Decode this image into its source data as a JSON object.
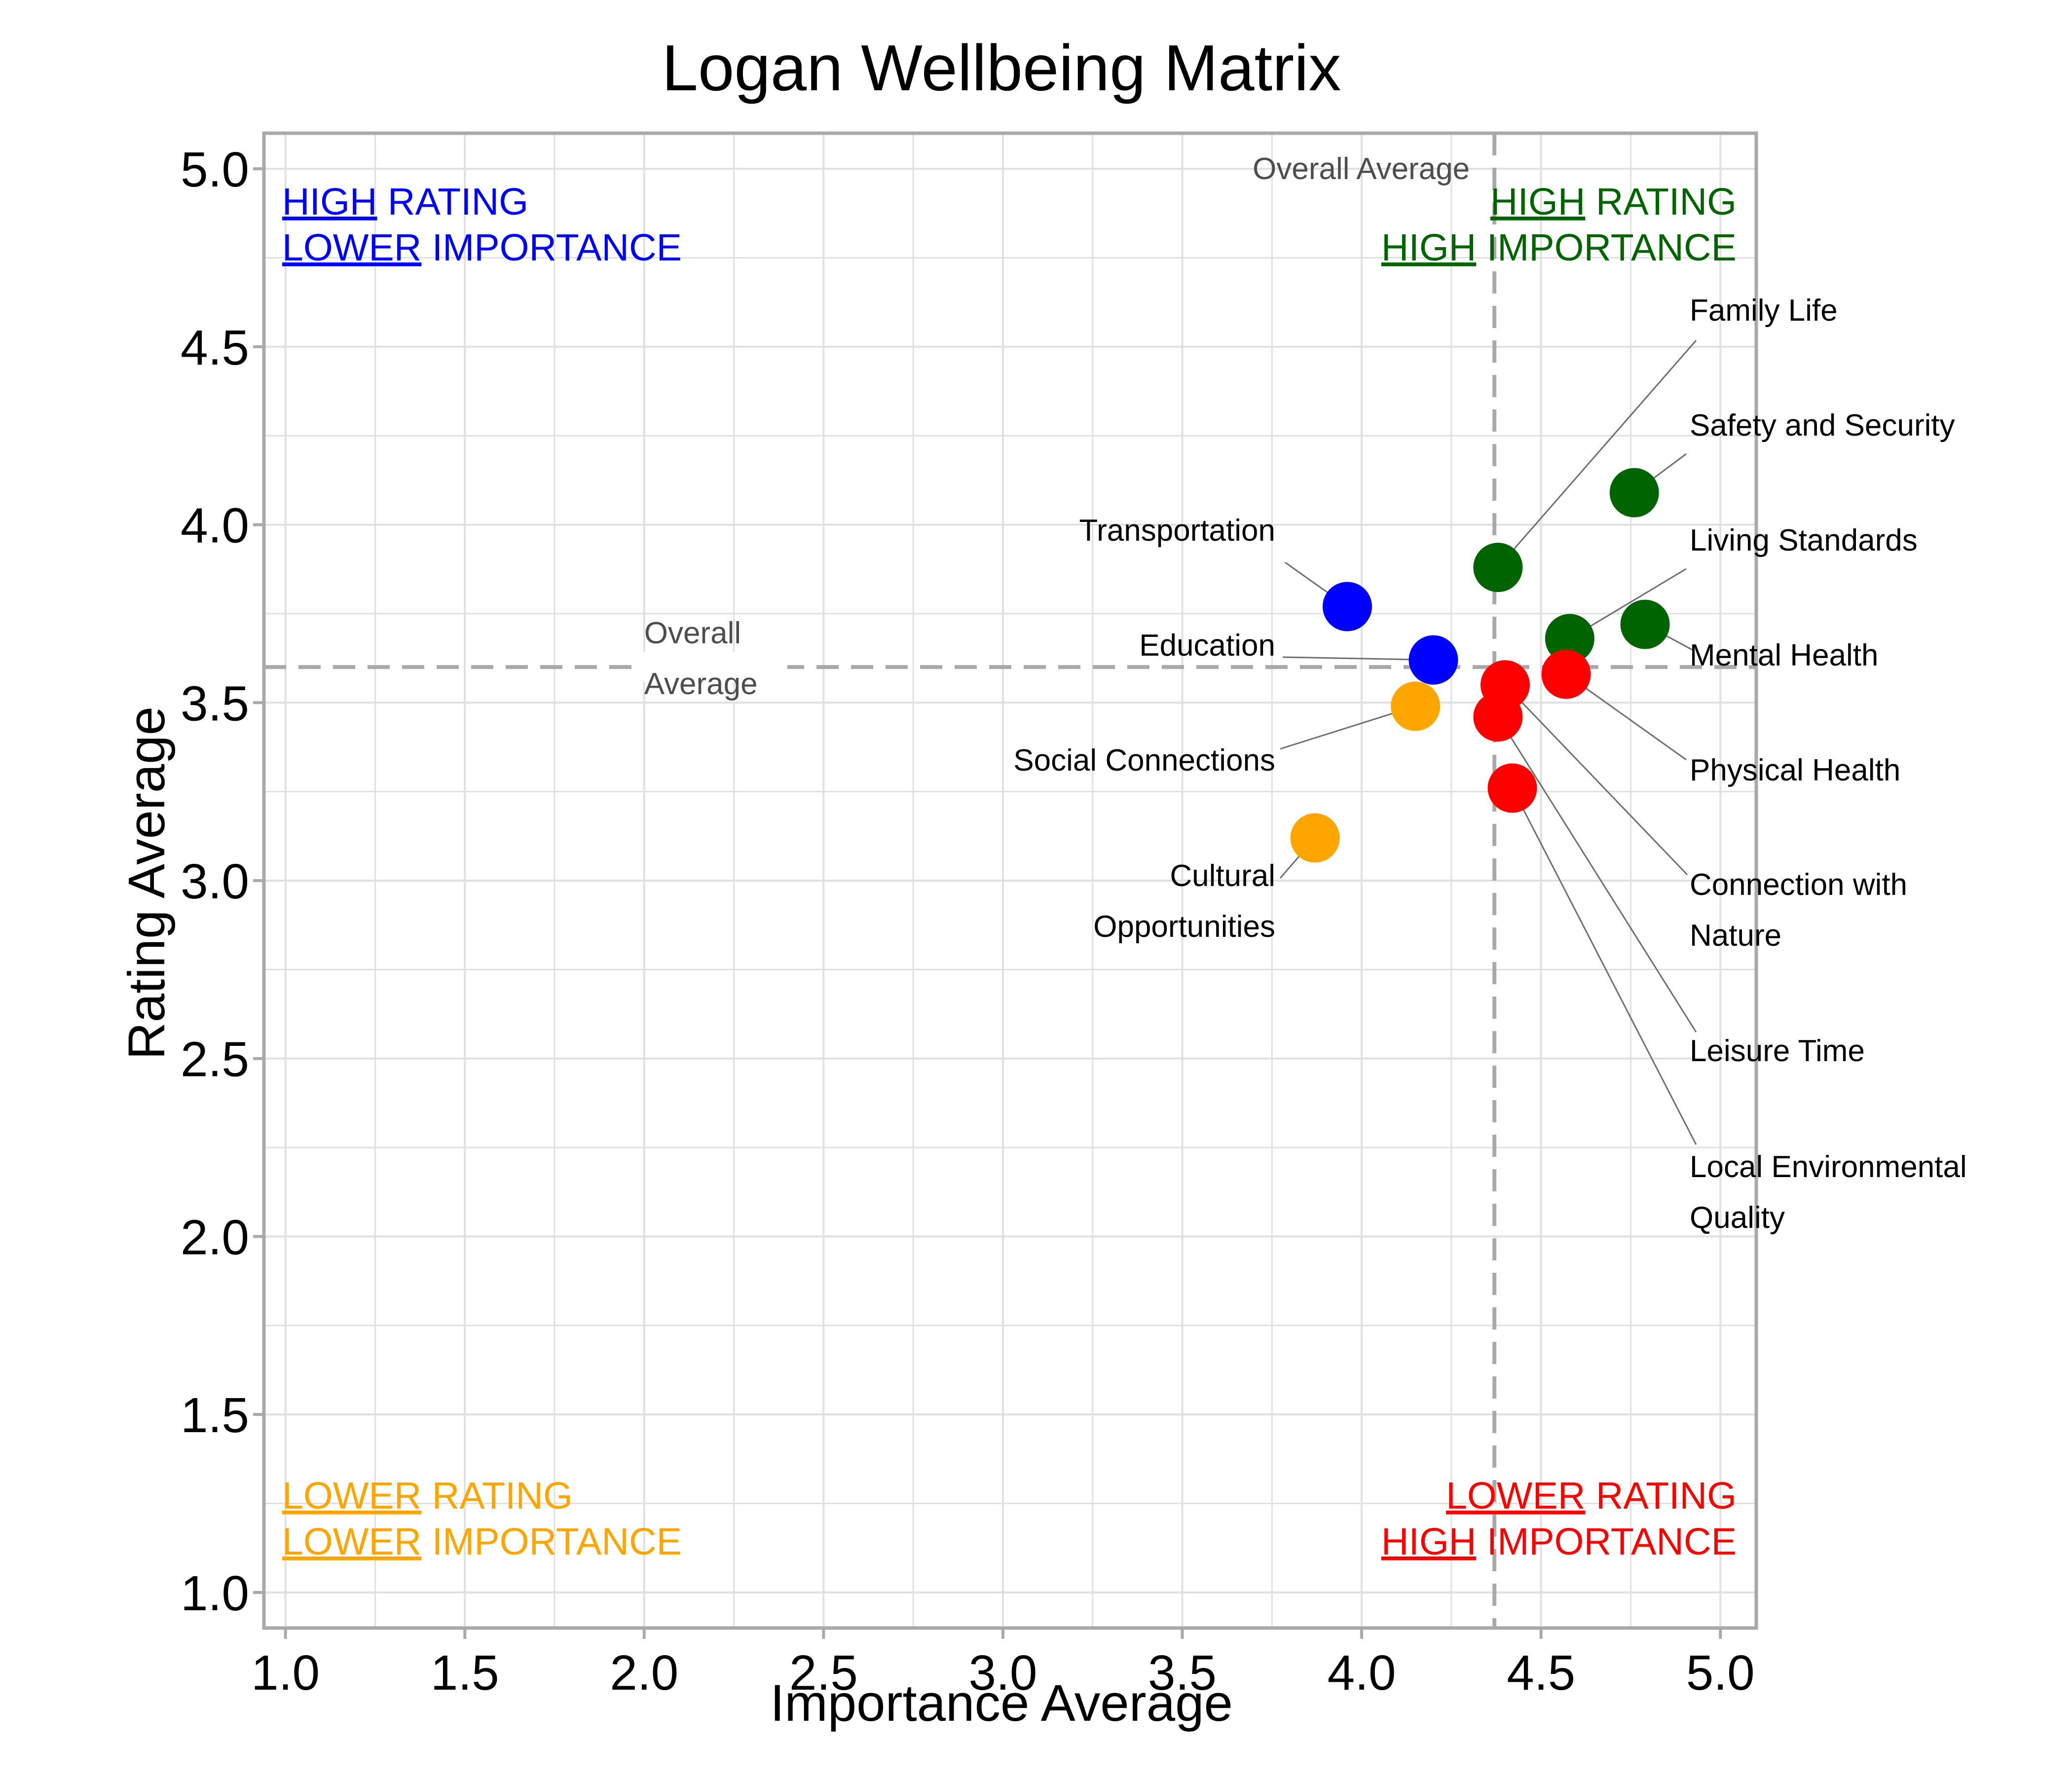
{
  "chart_data": {
    "type": "scatter",
    "title": "Logan Wellbeing Matrix",
    "xlabel": "Importance Average",
    "ylabel": "Rating Average",
    "xlim": [
      0.94,
      5.1
    ],
    "ylim": [
      0.9,
      5.1
    ],
    "x_ticks": [
      "1.0",
      "1.5",
      "2.0",
      "2.5",
      "3.0",
      "3.5",
      "4.0",
      "4.5",
      "5.0"
    ],
    "y_ticks": [
      "1.0",
      "1.5",
      "2.0",
      "2.5",
      "3.0",
      "3.5",
      "4.0",
      "4.5",
      "5.0"
    ],
    "grid": true,
    "reference_lines": {
      "x_average": 4.37,
      "y_average": 3.6,
      "x_average_label": "Overall Average",
      "y_average_label": [
        "Overall",
        "Average"
      ]
    },
    "quadrants": [
      {
        "key": "high_lower",
        "color": "#0000ff",
        "lines": [
          [
            "HIGH",
            " RATING"
          ],
          [
            "LOWER",
            " IMPORTANCE"
          ]
        ]
      },
      {
        "key": "high_high",
        "color": "#006400",
        "lines": [
          [
            "HIGH",
            " RATING"
          ],
          [
            "HIGH",
            " IMPORTANCE"
          ]
        ]
      },
      {
        "key": "lower_lower",
        "color": "#ffa500",
        "lines": [
          [
            "LOWER",
            " RATING"
          ],
          [
            "LOWER",
            " IMPORTANCE"
          ]
        ]
      },
      {
        "key": "lower_high",
        "color": "#ff0000",
        "lines": [
          [
            "LOWER",
            " RATING"
          ],
          [
            "HIGH",
            " IMPORTANCE"
          ]
        ]
      }
    ],
    "points": [
      {
        "name": "Family Life",
        "label": [
          "Family Life"
        ],
        "x": 4.38,
        "y": 3.88,
        "color": "#006400"
      },
      {
        "name": "Safety and Security",
        "label": [
          "Safety and Security"
        ],
        "x": 4.76,
        "y": 4.09,
        "color": "#006400"
      },
      {
        "name": "Living Standards",
        "label": [
          "Living Standards"
        ],
        "x": 4.58,
        "y": 3.68,
        "color": "#006400"
      },
      {
        "name": "Mental Health",
        "label": [
          "Mental Health"
        ],
        "x": 4.79,
        "y": 3.72,
        "color": "#006400"
      },
      {
        "name": "Physical Health",
        "label": [
          "Physical Health"
        ],
        "x": 4.57,
        "y": 3.58,
        "color": "#ff0000"
      },
      {
        "name": "Connection with Nature",
        "label": [
          "Connection with",
          "Nature"
        ],
        "x": 4.4,
        "y": 3.55,
        "color": "#ff0000"
      },
      {
        "name": "Leisure Time",
        "label": [
          "Leisure Time"
        ],
        "x": 4.38,
        "y": 3.46,
        "color": "#ff0000"
      },
      {
        "name": "Local Environmental Quality",
        "label": [
          "Local Environmental",
          "Quality"
        ],
        "x": 4.42,
        "y": 3.26,
        "color": "#ff0000"
      },
      {
        "name": "Transportation",
        "label": [
          "Transportation"
        ],
        "x": 3.96,
        "y": 3.77,
        "color": "#0000ff"
      },
      {
        "name": "Education",
        "label": [
          "Education"
        ],
        "x": 4.2,
        "y": 3.62,
        "color": "#0000ff"
      },
      {
        "name": "Social Connections",
        "label": [
          "Social Connections"
        ],
        "x": 4.15,
        "y": 3.49,
        "color": "#ffa500"
      },
      {
        "name": "Cultural Opportunities",
        "label": [
          "Cultural",
          "Opportunities"
        ],
        "x": 3.87,
        "y": 3.12,
        "color": "#ffa500"
      }
    ]
  }
}
